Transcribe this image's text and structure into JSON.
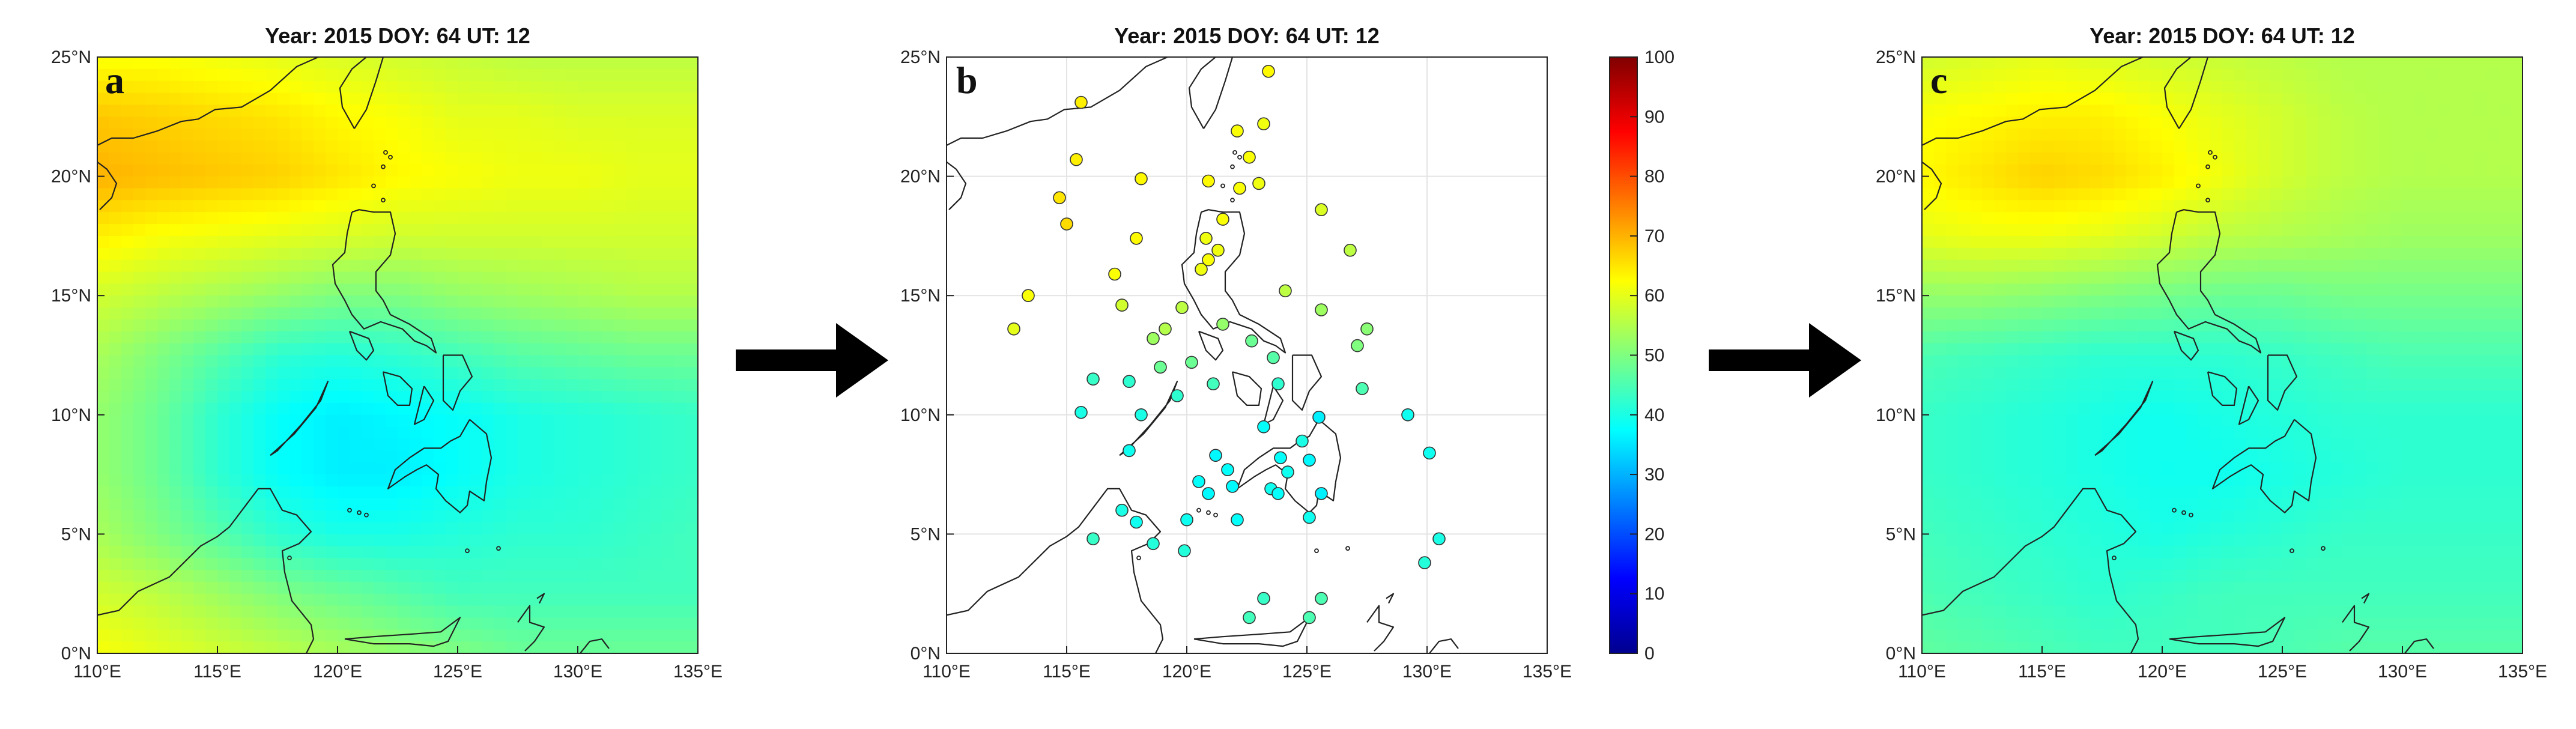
{
  "figure": {
    "panels": [
      {
        "id": "a",
        "letter": "a",
        "title": "Year: 2015 DOY: 64 UT: 12",
        "kind": "field"
      },
      {
        "id": "b",
        "letter": "b",
        "title": "Year: 2015 DOY: 64 UT: 12",
        "kind": "stations"
      },
      {
        "id": "c",
        "letter": "c",
        "title": "Year: 2015 DOY: 64 UT: 12",
        "kind": "field"
      }
    ],
    "x_ticks": [
      "110°E",
      "115°E",
      "120°E",
      "125°E",
      "130°E",
      "135°E"
    ],
    "y_ticks": [
      "0°N",
      "5°N",
      "10°N",
      "15°N",
      "20°N",
      "25°N"
    ],
    "colorbar": {
      "ticks": [
        "0",
        "10",
        "20",
        "30",
        "40",
        "50",
        "60",
        "70",
        "80",
        "90",
        "100"
      ],
      "colormap": "jet",
      "min": 0,
      "max": 100
    },
    "arrows": 2
  },
  "chart_data": [
    {
      "type": "heatmap",
      "panel": "a",
      "title": "Year: 2015 DOY: 64 UT: 12",
      "xlim": [
        110,
        135
      ],
      "ylim": [
        0,
        25
      ],
      "x_ticks": [
        "110°E",
        "115°E",
        "120°E",
        "125°E",
        "130°E",
        "135°E"
      ],
      "y_ticks": [
        "0°N",
        "5°N",
        "10°N",
        "15°N",
        "20°N",
        "25°N"
      ],
      "lon": [
        110,
        112.5,
        115,
        117.5,
        120,
        122.5,
        125,
        127.5,
        130,
        132.5,
        135
      ],
      "lat": [
        0,
        2.5,
        5,
        7.5,
        10,
        12.5,
        15,
        17.5,
        20,
        22.5,
        25
      ],
      "z": [
        [
          62,
          60,
          58,
          56,
          54,
          52,
          50,
          48,
          48,
          48,
          48
        ],
        [
          58,
          56,
          53,
          50,
          48,
          46,
          44,
          44,
          44,
          44,
          44
        ],
        [
          54,
          50,
          46,
          42,
          40,
          40,
          41,
          42,
          42,
          43,
          44
        ],
        [
          52,
          48,
          42,
          38,
          36,
          36,
          38,
          40,
          41,
          42,
          43
        ],
        [
          52,
          48,
          42,
          38,
          36,
          37,
          38,
          40,
          41,
          42,
          43
        ],
        [
          54,
          50,
          46,
          42,
          41,
          42,
          44,
          46,
          47,
          48,
          48
        ],
        [
          58,
          56,
          54,
          52,
          50,
          50,
          52,
          53,
          54,
          55,
          55
        ],
        [
          64,
          62,
          61,
          60,
          59,
          58,
          58,
          58,
          58,
          58,
          58
        ],
        [
          70,
          69,
          68,
          67,
          65,
          63,
          62,
          61,
          61,
          60,
          60
        ],
        [
          68,
          67,
          66,
          65,
          63,
          62,
          60,
          60,
          59,
          59,
          59
        ],
        [
          62,
          62,
          61,
          60,
          59,
          58,
          57,
          56,
          56,
          56,
          56
        ]
      ],
      "colorbar_range": [
        0,
        100
      ]
    },
    {
      "type": "scatter",
      "panel": "b",
      "title": "Year: 2015 DOY: 64 UT: 12",
      "xlim": [
        110,
        135
      ],
      "ylim": [
        0,
        25
      ],
      "x_ticks": [
        "110°E",
        "115°E",
        "120°E",
        "125°E",
        "130°E",
        "135°E"
      ],
      "y_ticks": [
        "0°N",
        "5°N",
        "10°N",
        "15°N",
        "20°N",
        "25°N"
      ],
      "colorbar_range": [
        0,
        100
      ],
      "points": [
        {
          "lon": 115.6,
          "lat": 23.1,
          "v": 64
        },
        {
          "lon": 123.4,
          "lat": 24.4,
          "v": 63
        },
        {
          "lon": 122.1,
          "lat": 21.9,
          "v": 62
        },
        {
          "lon": 123.2,
          "lat": 22.2,
          "v": 61
        },
        {
          "lon": 122.6,
          "lat": 20.8,
          "v": 62
        },
        {
          "lon": 115.4,
          "lat": 20.7,
          "v": 64
        },
        {
          "lon": 118.1,
          "lat": 19.9,
          "v": 63
        },
        {
          "lon": 120.9,
          "lat": 19.8,
          "v": 63
        },
        {
          "lon": 123.0,
          "lat": 19.7,
          "v": 61
        },
        {
          "lon": 122.2,
          "lat": 19.5,
          "v": 62
        },
        {
          "lon": 114.7,
          "lat": 19.1,
          "v": 65
        },
        {
          "lon": 125.6,
          "lat": 18.6,
          "v": 59
        },
        {
          "lon": 115.0,
          "lat": 18.0,
          "v": 66
        },
        {
          "lon": 121.5,
          "lat": 18.2,
          "v": 62
        },
        {
          "lon": 120.8,
          "lat": 17.4,
          "v": 61
        },
        {
          "lon": 117.9,
          "lat": 17.4,
          "v": 63
        },
        {
          "lon": 126.8,
          "lat": 16.9,
          "v": 56
        },
        {
          "lon": 121.3,
          "lat": 16.9,
          "v": 61
        },
        {
          "lon": 120.9,
          "lat": 16.5,
          "v": 62
        },
        {
          "lon": 120.6,
          "lat": 16.1,
          "v": 61
        },
        {
          "lon": 117.0,
          "lat": 15.9,
          "v": 62
        },
        {
          "lon": 124.1,
          "lat": 15.2,
          "v": 56
        },
        {
          "lon": 113.4,
          "lat": 15.0,
          "v": 62
        },
        {
          "lon": 117.3,
          "lat": 14.6,
          "v": 58
        },
        {
          "lon": 119.8,
          "lat": 14.5,
          "v": 56
        },
        {
          "lon": 125.6,
          "lat": 14.4,
          "v": 53
        },
        {
          "lon": 112.8,
          "lat": 13.6,
          "v": 60
        },
        {
          "lon": 119.1,
          "lat": 13.6,
          "v": 55
        },
        {
          "lon": 121.5,
          "lat": 13.8,
          "v": 52
        },
        {
          "lon": 127.5,
          "lat": 13.6,
          "v": 51
        },
        {
          "lon": 118.6,
          "lat": 13.2,
          "v": 53
        },
        {
          "lon": 122.7,
          "lat": 13.1,
          "v": 48
        },
        {
          "lon": 127.1,
          "lat": 12.9,
          "v": 50
        },
        {
          "lon": 118.9,
          "lat": 12.0,
          "v": 48
        },
        {
          "lon": 120.2,
          "lat": 12.2,
          "v": 48
        },
        {
          "lon": 123.6,
          "lat": 12.4,
          "v": 46
        },
        {
          "lon": 116.1,
          "lat": 11.5,
          "v": 43
        },
        {
          "lon": 117.6,
          "lat": 11.4,
          "v": 42
        },
        {
          "lon": 121.1,
          "lat": 11.3,
          "v": 44
        },
        {
          "lon": 123.8,
          "lat": 11.3,
          "v": 42
        },
        {
          "lon": 127.3,
          "lat": 11.1,
          "v": 45
        },
        {
          "lon": 119.6,
          "lat": 10.8,
          "v": 42
        },
        {
          "lon": 115.6,
          "lat": 10.1,
          "v": 40
        },
        {
          "lon": 118.1,
          "lat": 10.0,
          "v": 40
        },
        {
          "lon": 125.5,
          "lat": 9.9,
          "v": 36
        },
        {
          "lon": 129.2,
          "lat": 10.0,
          "v": 39
        },
        {
          "lon": 123.2,
          "lat": 9.5,
          "v": 38
        },
        {
          "lon": 124.8,
          "lat": 8.9,
          "v": 40
        },
        {
          "lon": 117.6,
          "lat": 8.5,
          "v": 39
        },
        {
          "lon": 121.2,
          "lat": 8.3,
          "v": 37
        },
        {
          "lon": 123.9,
          "lat": 8.2,
          "v": 38
        },
        {
          "lon": 130.1,
          "lat": 8.4,
          "v": 39
        },
        {
          "lon": 125.1,
          "lat": 8.1,
          "v": 37
        },
        {
          "lon": 121.7,
          "lat": 7.7,
          "v": 38
        },
        {
          "lon": 124.2,
          "lat": 7.6,
          "v": 39
        },
        {
          "lon": 120.5,
          "lat": 7.2,
          "v": 38
        },
        {
          "lon": 121.9,
          "lat": 7.0,
          "v": 37
        },
        {
          "lon": 123.5,
          "lat": 6.9,
          "v": 39
        },
        {
          "lon": 120.9,
          "lat": 6.7,
          "v": 37
        },
        {
          "lon": 123.8,
          "lat": 6.7,
          "v": 38
        },
        {
          "lon": 125.6,
          "lat": 6.7,
          "v": 36
        },
        {
          "lon": 117.3,
          "lat": 6.0,
          "v": 40
        },
        {
          "lon": 117.9,
          "lat": 5.5,
          "v": 39
        },
        {
          "lon": 120.0,
          "lat": 5.6,
          "v": 39
        },
        {
          "lon": 122.1,
          "lat": 5.6,
          "v": 38
        },
        {
          "lon": 125.1,
          "lat": 5.7,
          "v": 39
        },
        {
          "lon": 116.1,
          "lat": 4.8,
          "v": 43
        },
        {
          "lon": 118.6,
          "lat": 4.6,
          "v": 41
        },
        {
          "lon": 119.9,
          "lat": 4.3,
          "v": 41
        },
        {
          "lon": 130.5,
          "lat": 4.8,
          "v": 40
        },
        {
          "lon": 129.9,
          "lat": 3.8,
          "v": 41
        },
        {
          "lon": 123.2,
          "lat": 2.3,
          "v": 43
        },
        {
          "lon": 125.6,
          "lat": 2.3,
          "v": 45
        },
        {
          "lon": 122.6,
          "lat": 1.5,
          "v": 44
        },
        {
          "lon": 125.1,
          "lat": 1.5,
          "v": 45
        }
      ]
    },
    {
      "type": "heatmap",
      "panel": "c",
      "title": "Year: 2015 DOY: 64 UT: 12",
      "xlim": [
        110,
        135
      ],
      "ylim": [
        0,
        25
      ],
      "x_ticks": [
        "110°E",
        "115°E",
        "120°E",
        "125°E",
        "130°E",
        "135°E"
      ],
      "y_ticks": [
        "0°N",
        "5°N",
        "10°N",
        "15°N",
        "20°N",
        "25°N"
      ],
      "lon": [
        110,
        112.5,
        115,
        117.5,
        120,
        122.5,
        125,
        127.5,
        130,
        132.5,
        135
      ],
      "lat": [
        0,
        2.5,
        5,
        7.5,
        10,
        12.5,
        15,
        17.5,
        20,
        22.5,
        25
      ],
      "z": [
        [
          47,
          46,
          45,
          44,
          44,
          44,
          45,
          46,
          46,
          46,
          46
        ],
        [
          45,
          44,
          43,
          42,
          43,
          44,
          44,
          44,
          44,
          44,
          44
        ],
        [
          44,
          43,
          42,
          41,
          40,
          41,
          42,
          43,
          43,
          43,
          43
        ],
        [
          43,
          42,
          41,
          40,
          39,
          39,
          40,
          41,
          42,
          42,
          42
        ],
        [
          43,
          42,
          41,
          40,
          39,
          40,
          41,
          42,
          42,
          42,
          42
        ],
        [
          45,
          44,
          43,
          42,
          42,
          42,
          43,
          44,
          45,
          45,
          45
        ],
        [
          52,
          52,
          51,
          50,
          49,
          48,
          48,
          49,
          49,
          49,
          49
        ],
        [
          60,
          61,
          61,
          60,
          58,
          56,
          55,
          54,
          53,
          53,
          53
        ],
        [
          63,
          65,
          67,
          66,
          64,
          61,
          58,
          56,
          55,
          55,
          55
        ],
        [
          62,
          63,
          64,
          64,
          62,
          60,
          58,
          56,
          55,
          55,
          55
        ],
        [
          58,
          59,
          60,
          59,
          58,
          57,
          56,
          55,
          55,
          55,
          55
        ]
      ],
      "colorbar_range": [
        0,
        100
      ]
    }
  ]
}
